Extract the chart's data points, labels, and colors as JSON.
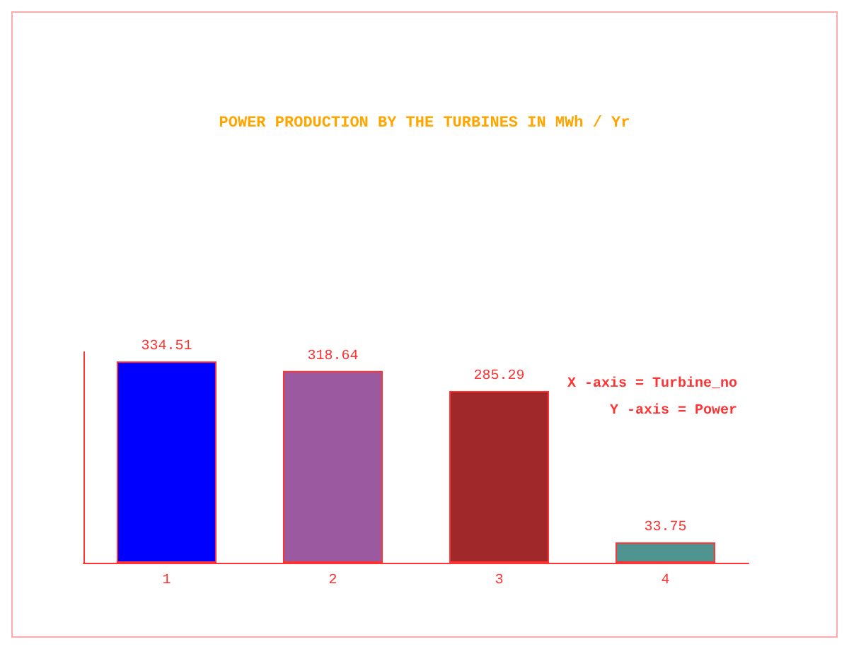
{
  "chart_data": {
    "type": "bar",
    "title": "POWER PRODUCTION BY THE TURBINES IN MWh / Yr",
    "categories": [
      "1",
      "2",
      "3",
      "4"
    ],
    "values": [
      334.51,
      318.64,
      285.29,
      33.75
    ],
    "colors": [
      "#0000ff",
      "#9b599f",
      "#a0282a",
      "#4f9490"
    ],
    "data_labels": true,
    "annotations": [
      "X -axis = Turbine_no",
      "Y -axis = Power"
    ],
    "tick_labels": "x",
    "grid": false
  }
}
